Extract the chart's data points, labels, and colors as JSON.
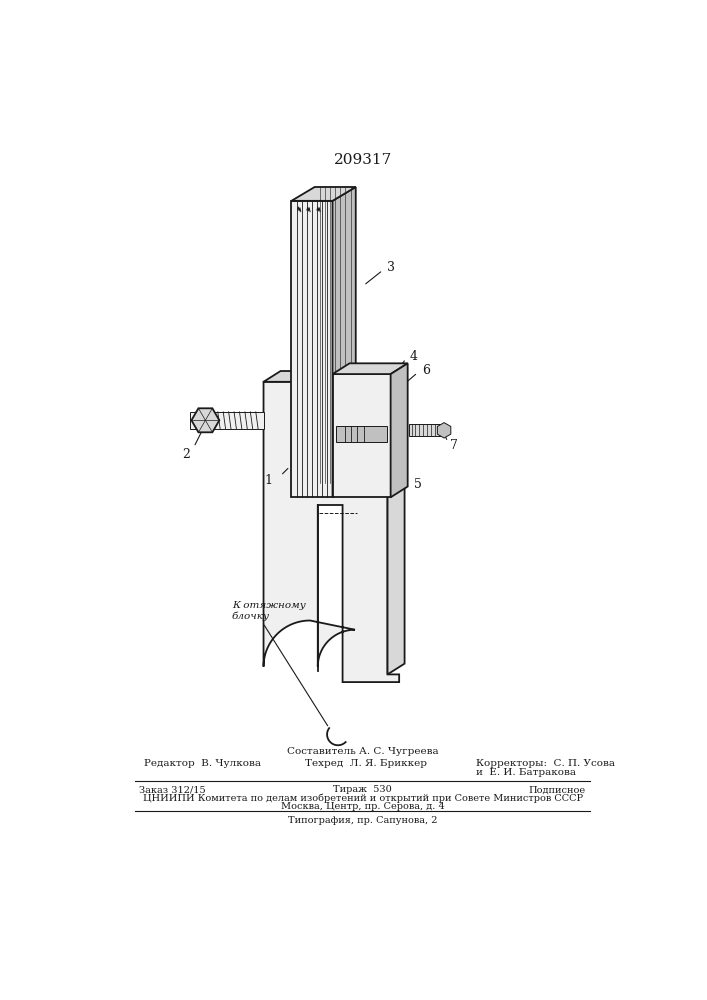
{
  "patent_number": "209317",
  "bg_color": "#ffffff",
  "drawing_color": "#1a1a1a",
  "footer_line1_center": "Составитель А. С. Чугреева",
  "footer_line1_left": "Редактор  В. Чулкова",
  "footer_line2_center": "Техред  Л. Я. Бриккер",
  "footer_line2_right": "Корректоры:  С. П. Усова",
  "footer_line3_right": "и  Е. И. Батракова",
  "footer_block1": "Заказ 312/15",
  "footer_block2": "Тираж  530",
  "footer_block3": "Подписное",
  "footer_block4": "ЦНИИПИ Комитета по делам изобретений и открытий при Совете Министров СССР",
  "footer_block5": "Москва, Центр, пр. Серова, д. 4",
  "footer_last": "Типография, пр. Сапунова, 2",
  "label_annotation": "К отяжному\nблочку",
  "title_fontsize": 11,
  "footer_fontsize": 7.5,
  "small_fontsize": 7.0
}
